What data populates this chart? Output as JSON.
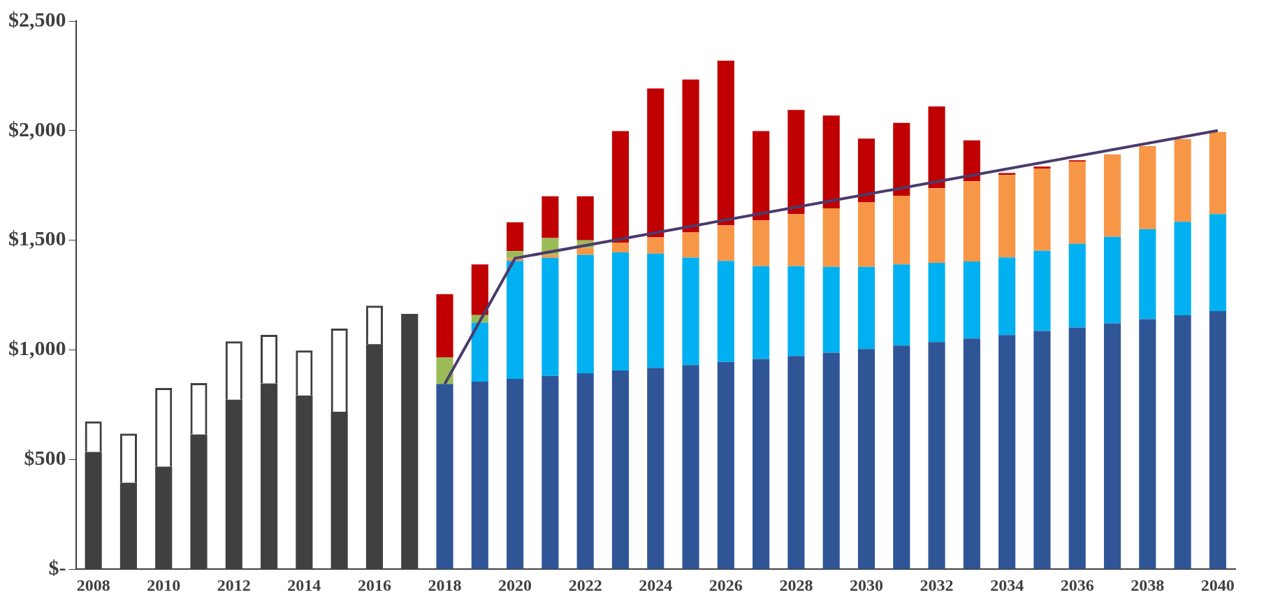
{
  "chart_data": {
    "type": "bar",
    "stacked": true,
    "marker": "none",
    "categories": [
      "2008",
      null,
      "2010",
      null,
      "2012",
      null,
      "2014",
      null,
      "2016",
      null,
      "2018",
      null,
      "2020",
      null,
      "2022",
      null,
      "2024",
      null,
      "2026",
      null,
      "2028",
      null,
      "2030",
      null,
      "2032",
      null,
      "2034",
      null,
      "2036",
      null,
      "2038",
      null,
      "2040"
    ],
    "ylim": [
      0,
      2500
    ],
    "yticks": [
      {
        "value": 0,
        "label": "$-"
      },
      {
        "value": 500,
        "label": "$500"
      },
      {
        "value": 1000,
        "label": "$1,000"
      },
      {
        "value": 1500,
        "label": "$1,500"
      },
      {
        "value": 2000,
        "label": "$2,000"
      },
      {
        "value": 2500,
        "label": "$2,500"
      }
    ],
    "series": [
      {
        "color": "#404040",
        "values": [
          535,
          394,
          468,
          614,
          773,
          847,
          792,
          718,
          1026,
          1164,
          null,
          null,
          null,
          null,
          null,
          null,
          null,
          null,
          null,
          null,
          null,
          null,
          null,
          null,
          null,
          null,
          null,
          null,
          null,
          null,
          null,
          null,
          null
        ]
      },
      {
        "color": "#404040",
        "values": [
          139,
          224,
          358,
          235,
          266,
          222,
          206,
          379,
          176,
          null,
          null,
          null,
          null,
          null,
          null,
          null,
          null,
          null,
          null,
          null,
          null,
          null,
          null,
          null,
          null,
          null,
          null,
          null,
          null,
          null,
          null,
          null,
          null
        ]
      },
      {
        "color": "#2f5597",
        "values": [
          null,
          null,
          null,
          null,
          null,
          null,
          null,
          null,
          null,
          null,
          845,
          855,
          868,
          881,
          893,
          906,
          918,
          931,
          945,
          959,
          972,
          987,
          1004,
          1020,
          1036,
          1052,
          1068,
          1086,
          1102,
          1121,
          1140,
          1158,
          1177
        ]
      },
      {
        "color": "#00b0f0",
        "values": [
          null,
          null,
          null,
          null,
          null,
          null,
          null,
          null,
          null,
          null,
          null,
          269,
          538,
          539,
          541,
          539,
          521,
          490,
          461,
          423,
          410,
          392,
          375,
          370,
          361,
          351,
          354,
          366,
          382,
          395,
          411,
          426,
          442
        ]
      },
      {
        "color": "#f79646",
        "values": [
          null,
          null,
          null,
          null,
          null,
          null,
          null,
          null,
          null,
          null,
          null,
          null,
          12,
          13,
          31,
          44,
          74,
          115,
          162,
          209,
          237,
          267,
          294,
          313,
          340,
          366,
          376,
          375,
          375,
          376,
          378,
          377,
          375
        ]
      },
      {
        "color": "#9bbb59",
        "values": [
          null,
          null,
          null,
          null,
          null,
          null,
          null,
          null,
          null,
          null,
          120,
          35,
          32,
          77,
          35,
          null,
          null,
          null,
          null,
          null,
          null,
          null,
          null,
          null,
          null,
          null,
          null,
          null,
          null,
          null,
          null,
          null,
          null
        ]
      },
      {
        "color": "#c00000",
        "values": [
          null,
          null,
          null,
          null,
          null,
          null,
          null,
          null,
          null,
          null,
          289,
          231,
          132,
          191,
          201,
          509,
          679,
          697,
          751,
          407,
          475,
          423,
          291,
          332,
          373,
          187,
          9,
          9,
          6,
          null,
          null,
          null,
          null
        ]
      },
      {
        "type": "line",
        "color": "#4b3b6b",
        "values": [
          null,
          null,
          null,
          null,
          null,
          null,
          null,
          null,
          null,
          null,
          845,
          null,
          1418,
          null,
          null,
          null,
          null,
          null,
          null,
          null,
          null,
          null,
          null,
          null,
          null,
          null,
          null,
          null,
          null,
          null,
          null,
          null,
          2000
        ]
      }
    ]
  }
}
